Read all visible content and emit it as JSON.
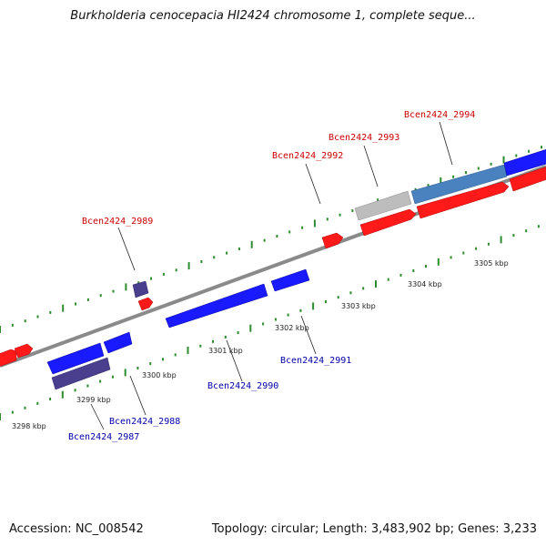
{
  "title": "Burkholderia cenocepacia HI2424 chromosome 1, complete seque...",
  "footer": {
    "accession": "Accession: NC_008542",
    "summary": "Topology: circular; Length: 3,483,902 bp; Genes: 3,233"
  },
  "colors": {
    "forward_gene": "#ff1a1a",
    "reverse_gene": "#1a1aff",
    "reverse_gene_dark": "#4a3f8f",
    "highlight_gene": "#4a82c0",
    "gray_gene": "#bdbdbd",
    "backbone": "#8a8a8a",
    "tick": "#2e8b2e",
    "forward_label": "#cc0000",
    "reverse_label": "#0000aa"
  },
  "scale_ticks": [
    {
      "label": "3298 kbp"
    },
    {
      "label": "3299 kbp"
    },
    {
      "label": "3300 kbp"
    },
    {
      "label": "3301 kbp"
    },
    {
      "label": "3302 kbp"
    },
    {
      "label": "3303 kbp"
    },
    {
      "label": "3304 kbp"
    },
    {
      "label": "3305 kbp"
    }
  ],
  "gene_labels": {
    "g2987": "Bcen2424_2987",
    "g2988": "Bcen2424_2988",
    "g2989": "Bcen2424_2989",
    "g2990": "Bcen2424_2990",
    "g2991": "Bcen2424_2991",
    "g2992": "Bcen2424_2992",
    "g2993": "Bcen2424_2993",
    "g2994": "Bcen2424_2994"
  }
}
